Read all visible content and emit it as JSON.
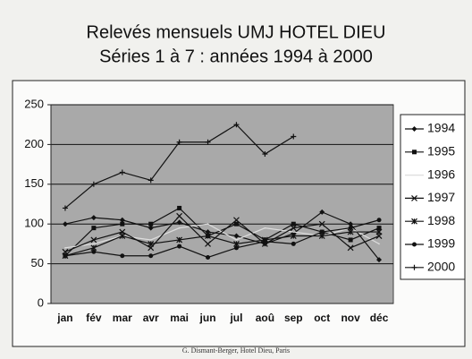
{
  "chart_data": {
    "type": "line",
    "title": "Relevés mensuels UMJ HOTEL DIEU",
    "subtitle": "Séries 1 à 7 : années 1994 à 2000",
    "footer": "G. Dismant-Berger, Hotel Dieu, Paris",
    "categories": [
      "jan",
      "fév",
      "mar",
      "avr",
      "mai",
      "jun",
      "jul",
      "aoû",
      "sep",
      "oct",
      "nov",
      "déc"
    ],
    "ylim": [
      0,
      250
    ],
    "yticks": [
      0,
      50,
      100,
      150,
      200,
      250
    ],
    "grid": true,
    "legend": "right",
    "series": [
      {
        "name": "1994",
        "color": "#111111",
        "marker": "diamond",
        "values": [
          100,
          108,
          105,
          95,
          102,
          90,
          85,
          75,
          88,
          115,
          100,
          55
        ]
      },
      {
        "name": "1995",
        "color": "#111111",
        "marker": "square",
        "values": [
          60,
          95,
          100,
          100,
          120,
          85,
          100,
          80,
          100,
          90,
          80,
          95
        ]
      },
      {
        "name": "1996",
        "color": "#dddddd",
        "marker": "none",
        "values": [
          70,
          75,
          85,
          80,
          95,
          100,
          80,
          95,
          90,
          85,
          95,
          75
        ]
      },
      {
        "name": "1997",
        "color": "#111111",
        "marker": "x",
        "values": [
          65,
          80,
          90,
          70,
          110,
          75,
          105,
          75,
          95,
          100,
          70,
          85
        ]
      },
      {
        "name": "1998",
        "color": "#111111",
        "marker": "asterisk",
        "values": [
          60,
          70,
          85,
          75,
          80,
          85,
          75,
          80,
          85,
          85,
          90,
          90
        ]
      },
      {
        "name": "1999",
        "color": "#111111",
        "marker": "circle",
        "values": [
          60,
          65,
          60,
          60,
          72,
          58,
          70,
          78,
          75,
          90,
          95,
          105
        ]
      },
      {
        "name": "2000",
        "color": "#111111",
        "marker": "plus",
        "values": [
          120,
          150,
          165,
          155,
          203,
          203,
          225,
          188,
          210,
          null,
          null,
          null
        ]
      }
    ]
  }
}
